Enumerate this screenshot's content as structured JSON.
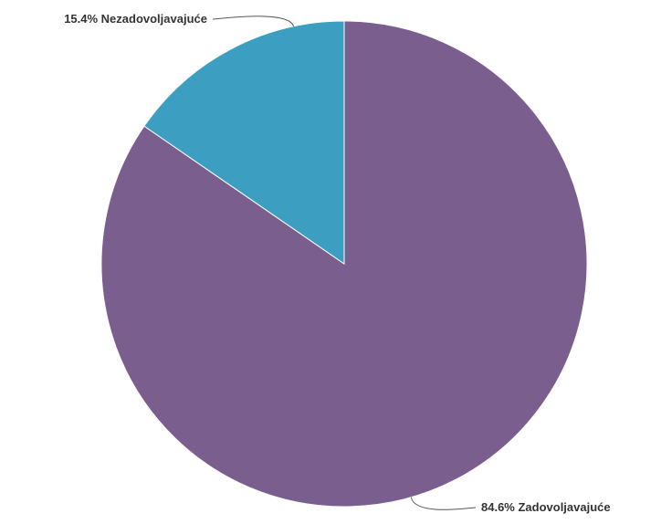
{
  "chart_data": {
    "type": "pie",
    "slices": [
      {
        "name": "Zadovoljavajuće",
        "value": 84.6,
        "label": "84.6% Zadovoljavajuće",
        "color": "#7a5e8e"
      },
      {
        "name": "Nezadovoljavajuće",
        "value": 15.4,
        "label": "15.4% Nezadovoljavajuće",
        "color": "#3c9fc1"
      }
    ],
    "start_angle_deg": 0,
    "direction": "clockwise",
    "legend": "none"
  }
}
